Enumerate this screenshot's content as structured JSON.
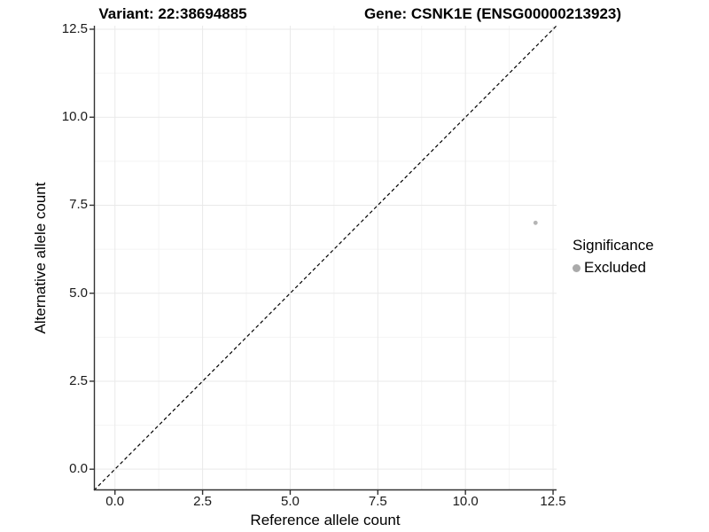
{
  "header": {
    "title_left": "Variant: 22:38694885",
    "title_right": "Gene: CSNK1E (ENSG00000213923)"
  },
  "chart_data": {
    "type": "scatter",
    "title_left": "Variant: 22:38694885",
    "title_right": "Gene: CSNK1E (ENSG00000213923)",
    "xlabel": "Reference allele count",
    "ylabel": "Alternative allele count",
    "xlim": [
      -0.6,
      12.6
    ],
    "ylim": [
      -0.6,
      12.6
    ],
    "x_ticks": [
      0.0,
      2.5,
      5.0,
      7.5,
      10.0,
      12.5
    ],
    "y_ticks": [
      0.0,
      2.5,
      5.0,
      7.5,
      10.0,
      12.5
    ],
    "x_tick_labels": [
      "0.0",
      "2.5",
      "5.0",
      "7.5",
      "10.0",
      "12.5"
    ],
    "y_tick_labels": [
      "0.0",
      "2.5",
      "5.0",
      "7.5",
      "10.0",
      "12.5"
    ],
    "minor_ticks": [
      1.25,
      3.75,
      6.25,
      8.75,
      11.25
    ],
    "grid": true,
    "series": [
      {
        "name": "Excluded",
        "color": "#b5b5b5",
        "points": [
          {
            "x": 12,
            "y": 7
          }
        ]
      }
    ],
    "reference_line": {
      "type": "identity",
      "style": "dashed",
      "color": "#000000"
    },
    "legend": {
      "title": "Significance",
      "position": "right",
      "items": [
        {
          "label": "Excluded",
          "color": "#aaaaaa"
        }
      ]
    }
  },
  "colors": {
    "background": "#ffffff",
    "grid_major": "#e9e9e9",
    "grid_minor": "#f4f4f4",
    "axis_line": "#333333",
    "tick_text": "#1a1a1a",
    "point": "#b5b5b5",
    "legend_key": "#aaaaaa"
  }
}
